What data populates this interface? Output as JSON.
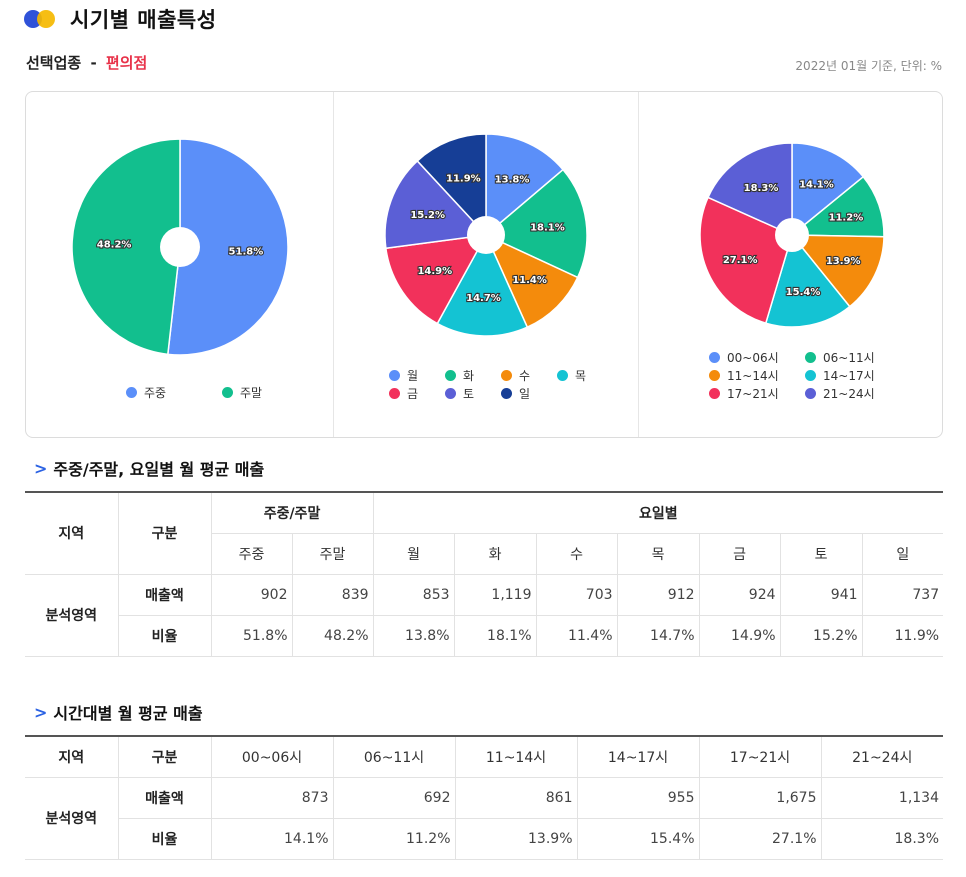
{
  "header": {
    "title": "시기별 매출특성"
  },
  "selection": {
    "label": "선택업종",
    "dash": "-",
    "industry": "편의점"
  },
  "basis": "2022년 01월 기준, 단위: %",
  "colors": {
    "blue": "#5b8ff9",
    "green": "#12bf8e",
    "orange": "#f48b0c",
    "cyan": "#14c3d3",
    "red": "#f2315b",
    "purple": "#5b5fd6",
    "navy": "#163e96",
    "accent": "#e8334a"
  },
  "chart_data": [
    {
      "type": "pie",
      "categories": [
        "주중",
        "주말"
      ],
      "values": [
        51.8,
        48.2
      ],
      "labels": [
        "51.8%",
        "48.2%"
      ],
      "colors": [
        "#5b8ff9",
        "#12bf8e"
      ],
      "legend": "bottom"
    },
    {
      "type": "pie",
      "categories": [
        "월",
        "화",
        "수",
        "목",
        "금",
        "토",
        "일"
      ],
      "values": [
        13.8,
        18.1,
        11.4,
        14.7,
        14.9,
        15.2,
        11.9
      ],
      "labels": [
        "13.8%",
        "18.1%",
        "11.4%",
        "14.7%",
        "14.9%",
        "15.2%",
        "11.9%"
      ],
      "colors": [
        "#5b8ff9",
        "#12bf8e",
        "#f48b0c",
        "#14c3d3",
        "#f2315b",
        "#5b5fd6",
        "#163e96"
      ],
      "legend": "bottom"
    },
    {
      "type": "pie",
      "categories": [
        "00~06시",
        "06~11시",
        "11~14시",
        "14~17시",
        "17~21시",
        "21~24시"
      ],
      "values": [
        14.1,
        11.2,
        13.9,
        15.4,
        27.1,
        18.3
      ],
      "labels": [
        "14.1%",
        "11.2%",
        "13.9%",
        "15.4%",
        "27.1%",
        "18.3%"
      ],
      "colors": [
        "#5b8ff9",
        "#12bf8e",
        "#f48b0c",
        "#14c3d3",
        "#f2315b",
        "#5b5fd6"
      ],
      "legend": "bottom"
    }
  ],
  "table1": {
    "title": "주중/주말, 요일별 월 평균 매출",
    "h_region": "지역",
    "h_type": "구분",
    "g1": "주중/주말",
    "g2": "요일별",
    "cols": [
      "주중",
      "주말",
      "월",
      "화",
      "수",
      "목",
      "금",
      "토",
      "일"
    ],
    "region": "분석영역",
    "rows": [
      {
        "label": "매출액",
        "values": [
          "902",
          "839",
          "853",
          "1,119",
          "703",
          "912",
          "924",
          "941",
          "737"
        ]
      },
      {
        "label": "비율",
        "values": [
          "51.8%",
          "48.2%",
          "13.8%",
          "18.1%",
          "11.4%",
          "14.7%",
          "14.9%",
          "15.2%",
          "11.9%"
        ]
      }
    ]
  },
  "table2": {
    "title": "시간대별 월 평균 매출",
    "h_region": "지역",
    "h_type": "구분",
    "cols": [
      "00~06시",
      "06~11시",
      "11~14시",
      "14~17시",
      "17~21시",
      "21~24시"
    ],
    "region": "분석영역",
    "rows": [
      {
        "label": "매출액",
        "values": [
          "873",
          "692",
          "861",
          "955",
          "1,675",
          "1,134"
        ]
      },
      {
        "label": "비율",
        "values": [
          "14.1%",
          "11.2%",
          "13.9%",
          "15.4%",
          "27.1%",
          "18.3%"
        ]
      }
    ]
  }
}
